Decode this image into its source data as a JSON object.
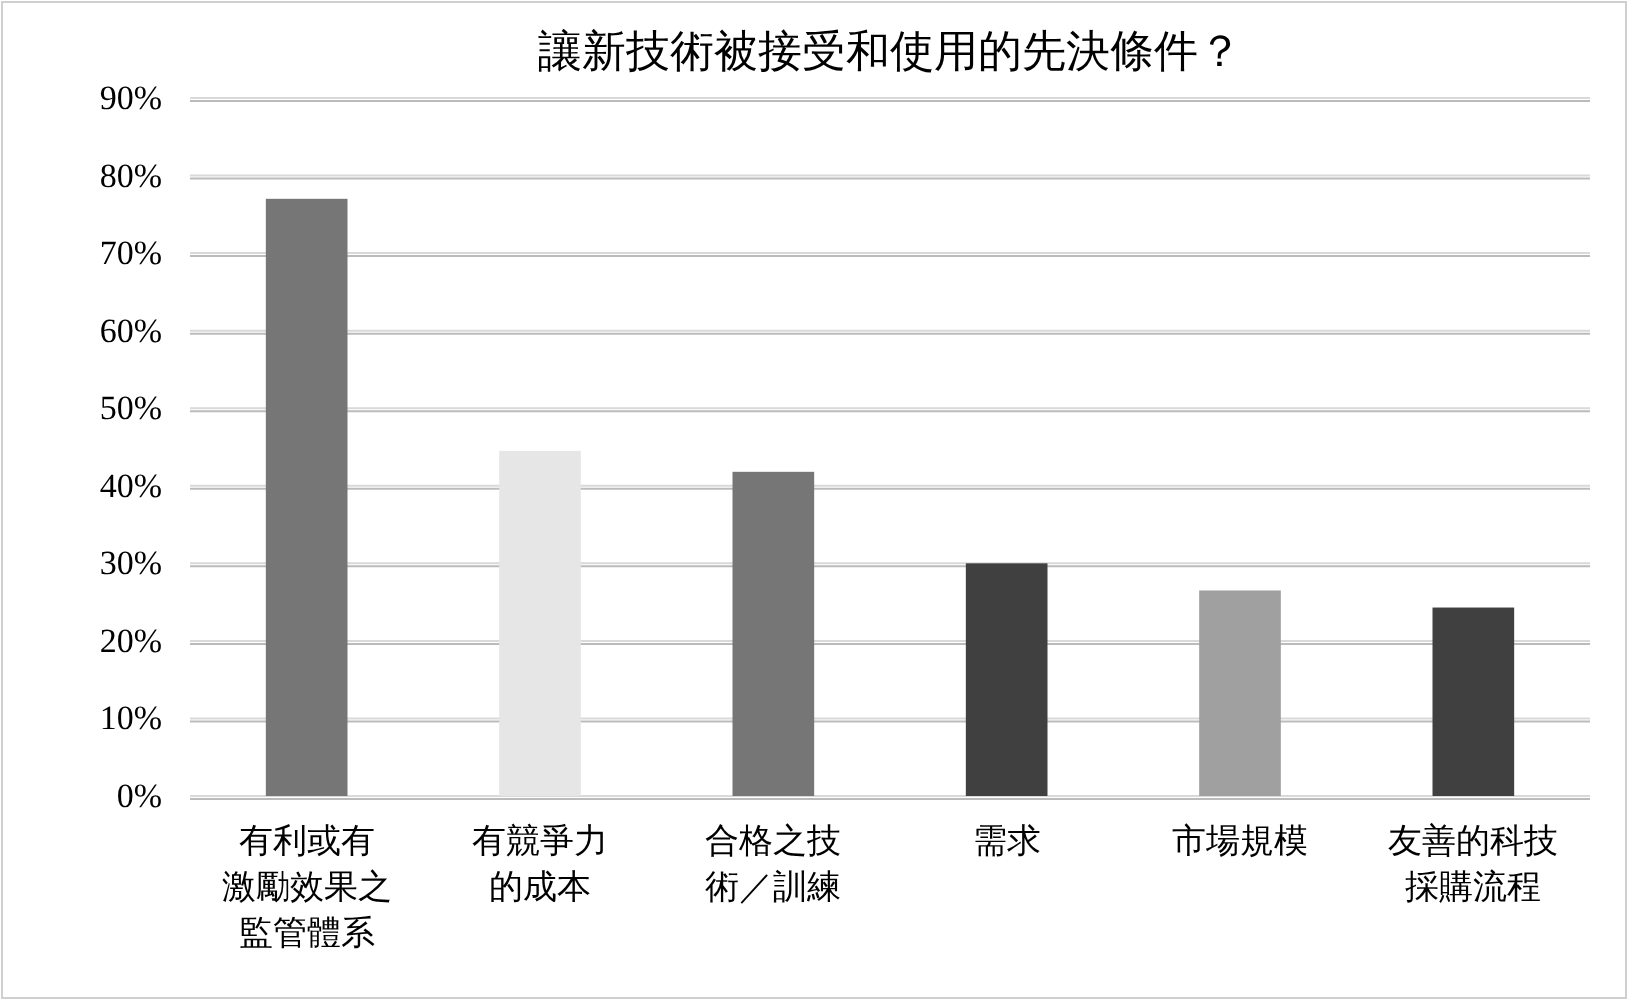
{
  "chart_data": {
    "type": "bar",
    "title": "讓新技術被接受和使用的先決條件？",
    "categories": [
      "有利或有激勵效果之監管體系",
      "有競爭力的成本",
      "合格之技術／訓練",
      "需求",
      "市場規模",
      "友善的科技採購流程"
    ],
    "values": [
      77,
      44.5,
      41.8,
      30,
      26.5,
      24.3
    ],
    "colors": [
      "#767676",
      "#e6e6e6",
      "#767676",
      "#404040",
      "#a0a0a0",
      "#404040"
    ],
    "ylim": [
      0,
      90
    ],
    "yticks": [
      {
        "value": 0,
        "label": "0%"
      },
      {
        "value": 10,
        "label": "10%"
      },
      {
        "value": 20,
        "label": "20%"
      },
      {
        "value": 30,
        "label": "30%"
      },
      {
        "value": 40,
        "label": "40%"
      },
      {
        "value": 50,
        "label": "50%"
      },
      {
        "value": 60,
        "label": "60%"
      },
      {
        "value": 70,
        "label": "70%"
      },
      {
        "value": 80,
        "label": "80%"
      },
      {
        "value": 90,
        "label": "90%"
      }
    ],
    "grid": "y"
  }
}
